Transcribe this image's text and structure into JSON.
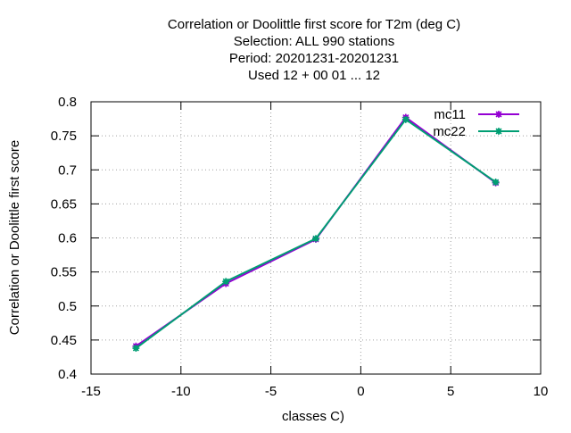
{
  "chart_data": {
    "type": "line",
    "title_lines": [
      "Correlation or Doolittle first score  for T2m (deg C)",
      "Selection: ALL    990 stations",
      "Period: 20201231-20201231",
      "Used  12 + 00 01 ... 12"
    ],
    "xlabel": "classes C)",
    "ylabel": "Correlation or Doolittle first score",
    "xlim": [
      -15,
      10
    ],
    "ylim": [
      0.4,
      0.8
    ],
    "xticks": [
      -15,
      -10,
      -5,
      0,
      5,
      10
    ],
    "xtick_labels": [
      "-15",
      "-10",
      "-5",
      "0",
      "5",
      "10"
    ],
    "yticks": [
      0.4,
      0.45,
      0.5,
      0.55,
      0.6,
      0.65,
      0.7,
      0.75,
      0.8
    ],
    "ytick_labels": [
      "0.4",
      "0.45",
      "0.5",
      "0.55",
      "0.6",
      "0.65",
      "0.7",
      "0.75",
      "0.8"
    ],
    "grid": true,
    "legend_position": "top-right",
    "series": [
      {
        "name": "mc11",
        "color": "#9400d3",
        "x": [
          -12.5,
          -7.5,
          -2.5,
          2.5,
          7.5
        ],
        "y": [
          0.441,
          0.533,
          0.598,
          0.777,
          0.681
        ]
      },
      {
        "name": "mc22",
        "color": "#009e73",
        "x": [
          -12.5,
          -7.5,
          -2.5,
          2.5,
          7.5
        ],
        "y": [
          0.438,
          0.536,
          0.599,
          0.774,
          0.682
        ]
      }
    ]
  }
}
